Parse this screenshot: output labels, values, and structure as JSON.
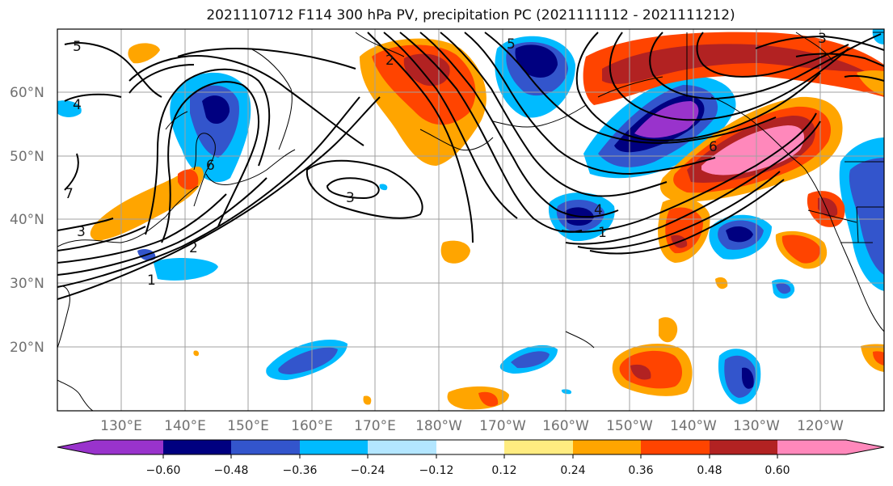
{
  "title": "2021110712 F114 300 hPa PV, precipitation PC (2021111112 - 2021111212)",
  "lat_labels": [
    "60°N",
    "50°N",
    "40°N",
    "30°N",
    "20°N"
  ],
  "lon_labels": [
    "130°E",
    "140°E",
    "150°E",
    "160°E",
    "170°E",
    "180°W",
    "170°W",
    "160°W",
    "150°W",
    "140°W",
    "130°W",
    "120°W"
  ],
  "colorbar": {
    "ticks": [
      "−0.60",
      "−0.48",
      "−0.36",
      "−0.24",
      "−0.12",
      "0.12",
      "0.24",
      "0.36",
      "0.48",
      "0.60"
    ],
    "colors": [
      "#9933cc",
      "#000080",
      "#3355cc",
      "#00bbff",
      "#b3e6ff",
      "#ffffff",
      "#ffec80",
      "#ffa500",
      "#ff4400",
      "#b22222",
      "#ff88bb"
    ]
  },
  "contour_labels": [
    "3",
    "2",
    "1",
    "4",
    "5",
    "6",
    "7",
    "3",
    "4",
    "1",
    "2",
    "6",
    "5",
    "3"
  ]
}
